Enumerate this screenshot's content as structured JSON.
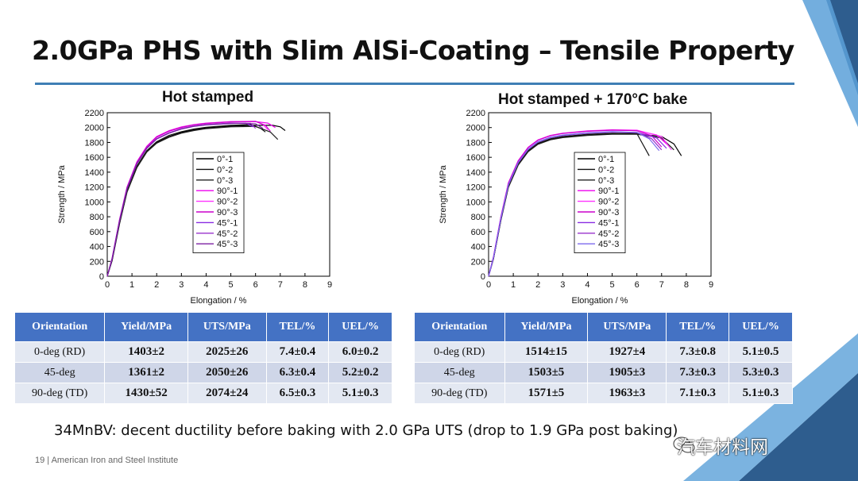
{
  "slide": {
    "title": "2.0GPa PHS with Slim AlSi-Coating – Tensile Property",
    "caption": "34MnBV: decent ductility before baking with 2.0 GPa UTS (drop to 1.9 GPa post baking)",
    "footer": "19  |  American Iron and Steel Institute",
    "watermark": "汽车材料网"
  },
  "colors": {
    "accent_rule": "#3f7fb5",
    "table_header": "#4472c4",
    "triangle_dark": "#2e5d8e",
    "triangle_light": "#5aa0d8"
  },
  "chart_data": [
    {
      "type": "line",
      "title": "Hot stamped",
      "xlabel": "Elongation / %",
      "ylabel": "Strength / MPa",
      "xlim": [
        0,
        9
      ],
      "ylim": [
        0,
        2200
      ],
      "xticks": [
        0,
        1,
        2,
        3,
        4,
        5,
        6,
        7,
        8,
        9
      ],
      "yticks": [
        0,
        200,
        400,
        600,
        800,
        1000,
        1200,
        1400,
        1600,
        1800,
        2000,
        2200
      ],
      "legend_position": "center",
      "series": [
        {
          "name": "0°-1",
          "color": "#000000",
          "x": [
            0,
            0.2,
            0.5,
            0.8,
            1.2,
            1.6,
            2,
            2.5,
            3,
            3.5,
            4,
            5,
            6,
            6.7,
            7.0,
            7.2
          ],
          "y": [
            0,
            220,
            720,
            1140,
            1470,
            1680,
            1800,
            1880,
            1935,
            1970,
            1995,
            2020,
            2030,
            2030,
            2010,
            1960
          ]
        },
        {
          "name": "0°-2",
          "color": "#111111",
          "x": [
            0,
            0.2,
            0.5,
            0.8,
            1.2,
            1.6,
            2,
            2.5,
            3,
            3.5,
            4,
            5,
            5.8,
            6.2,
            6.4
          ],
          "y": [
            0,
            230,
            730,
            1150,
            1480,
            1690,
            1810,
            1895,
            1945,
            1980,
            2005,
            2030,
            2040,
            1990,
            1940
          ]
        },
        {
          "name": "0°-3",
          "color": "#222222",
          "x": [
            0,
            0.2,
            0.5,
            0.8,
            1.2,
            1.6,
            2,
            2.5,
            3,
            3.5,
            4,
            5,
            6,
            6.6,
            6.9
          ],
          "y": [
            0,
            210,
            710,
            1130,
            1460,
            1670,
            1790,
            1870,
            1925,
            1960,
            1985,
            2010,
            2015,
            1940,
            1840
          ]
        },
        {
          "name": "90°-1",
          "color": "#ee00ee",
          "x": [
            0,
            0.2,
            0.5,
            0.8,
            1.2,
            1.6,
            2,
            2.5,
            3,
            3.5,
            4,
            5,
            6,
            6.5,
            6.8
          ],
          "y": [
            0,
            240,
            760,
            1190,
            1530,
            1740,
            1870,
            1950,
            2000,
            2035,
            2055,
            2075,
            2080,
            2060,
            2000
          ]
        },
        {
          "name": "90°-2",
          "color": "#ff33ff",
          "x": [
            0,
            0.2,
            0.5,
            0.8,
            1.2,
            1.6,
            2,
            2.5,
            3,
            3.5,
            4,
            5,
            6,
            6.3,
            6.5
          ],
          "y": [
            0,
            250,
            770,
            1200,
            1540,
            1750,
            1880,
            1960,
            2010,
            2040,
            2060,
            2080,
            2085,
            2040,
            1970
          ]
        },
        {
          "name": "90°-3",
          "color": "#cc00cc",
          "x": [
            0,
            0.2,
            0.5,
            0.8,
            1.2,
            1.6,
            2,
            2.5,
            3,
            3.5,
            4,
            5,
            6,
            6.4,
            6.6
          ],
          "y": [
            0,
            245,
            765,
            1195,
            1535,
            1745,
            1875,
            1955,
            2005,
            2038,
            2058,
            2078,
            2082,
            2030,
            1950
          ]
        },
        {
          "name": "45°-1",
          "color": "#8a2be2",
          "x": [
            0,
            0.2,
            0.5,
            0.8,
            1.2,
            1.6,
            2,
            2.5,
            3,
            3.5,
            4,
            5,
            5.6,
            5.9
          ],
          "y": [
            0,
            235,
            750,
            1175,
            1510,
            1720,
            1845,
            1925,
            1980,
            2015,
            2035,
            2055,
            2060,
            2010
          ]
        },
        {
          "name": "45°-2",
          "color": "#9932cc",
          "x": [
            0,
            0.2,
            0.5,
            0.8,
            1.2,
            1.6,
            2,
            2.5,
            3,
            3.5,
            4,
            5,
            5.8,
            6.0
          ],
          "y": [
            0,
            240,
            755,
            1180,
            1515,
            1725,
            1850,
            1930,
            1985,
            2020,
            2040,
            2060,
            2058,
            1990
          ]
        },
        {
          "name": "45°-3",
          "color": "#7b1fa2",
          "x": [
            0,
            0.2,
            0.5,
            0.8,
            1.2,
            1.6,
            2,
            2.5,
            3,
            3.5,
            4,
            5,
            6,
            6.3
          ],
          "y": [
            0,
            238,
            752,
            1178,
            1512,
            1722,
            1848,
            1928,
            1982,
            2018,
            2038,
            2058,
            2050,
            1990
          ]
        }
      ]
    },
    {
      "type": "line",
      "title": "Hot stamped + 170°C bake",
      "xlabel": "Elongation / %",
      "ylabel": "Strength / MPa",
      "xlim": [
        0,
        9
      ],
      "ylim": [
        0,
        2200
      ],
      "xticks": [
        0,
        1,
        2,
        3,
        4,
        5,
        6,
        7,
        8,
        9
      ],
      "yticks": [
        0,
        200,
        400,
        600,
        800,
        1000,
        1200,
        1400,
        1600,
        1800,
        2000,
        2200
      ],
      "legend_position": "center",
      "series": [
        {
          "name": "0°-1",
          "color": "#000000",
          "x": [
            0,
            0.2,
            0.5,
            0.8,
            1.2,
            1.6,
            2,
            2.5,
            3,
            4,
            5,
            6,
            7,
            7.5,
            7.8
          ],
          "y": [
            0,
            240,
            760,
            1200,
            1500,
            1680,
            1780,
            1840,
            1870,
            1900,
            1915,
            1915,
            1880,
            1780,
            1620
          ]
        },
        {
          "name": "0°-2",
          "color": "#111111",
          "x": [
            0,
            0.2,
            0.5,
            0.8,
            1.2,
            1.6,
            2,
            2.5,
            3,
            4,
            5,
            6,
            6.2,
            6.5
          ],
          "y": [
            0,
            245,
            770,
            1210,
            1510,
            1690,
            1790,
            1850,
            1880,
            1910,
            1925,
            1920,
            1800,
            1620
          ]
        },
        {
          "name": "0°-3",
          "color": "#222222",
          "x": [
            0,
            0.2,
            0.5,
            0.8,
            1.2,
            1.6,
            2,
            2.5,
            3,
            4,
            5,
            6,
            7,
            7.5
          ],
          "y": [
            0,
            235,
            755,
            1195,
            1495,
            1675,
            1775,
            1835,
            1865,
            1895,
            1910,
            1910,
            1860,
            1700
          ]
        },
        {
          "name": "90°-1",
          "color": "#ee00ee",
          "x": [
            0,
            0.2,
            0.5,
            0.8,
            1.2,
            1.6,
            2,
            2.5,
            3,
            4,
            5,
            6,
            6.8,
            7.3
          ],
          "y": [
            0,
            260,
            800,
            1250,
            1550,
            1730,
            1830,
            1890,
            1920,
            1950,
            1965,
            1960,
            1900,
            1750
          ]
        },
        {
          "name": "90°-2",
          "color": "#ff33ff",
          "x": [
            0,
            0.2,
            0.5,
            0.8,
            1.2,
            1.6,
            2,
            2.5,
            3,
            4,
            5,
            6,
            7,
            7.4
          ],
          "y": [
            0,
            265,
            805,
            1255,
            1555,
            1735,
            1835,
            1895,
            1925,
            1955,
            1970,
            1965,
            1880,
            1700
          ]
        },
        {
          "name": "90°-3",
          "color": "#cc00cc",
          "x": [
            0,
            0.2,
            0.5,
            0.8,
            1.2,
            1.6,
            2,
            2.5,
            3,
            4,
            5,
            6,
            6.6,
            7.0
          ],
          "y": [
            0,
            262,
            802,
            1252,
            1552,
            1732,
            1832,
            1892,
            1922,
            1952,
            1966,
            1958,
            1890,
            1740
          ]
        },
        {
          "name": "45°-1",
          "color": "#8a2be2",
          "x": [
            0,
            0.2,
            0.5,
            0.8,
            1.2,
            1.6,
            2,
            2.5,
            3,
            4,
            5,
            6,
            6.8,
            7.2
          ],
          "y": [
            0,
            250,
            780,
            1225,
            1525,
            1705,
            1805,
            1865,
            1895,
            1925,
            1940,
            1935,
            1860,
            1720
          ]
        },
        {
          "name": "45°-2",
          "color": "#9932cc",
          "x": [
            0,
            0.2,
            0.5,
            0.8,
            1.2,
            1.6,
            2,
            2.5,
            3,
            4,
            5,
            6,
            6.6,
            7.0
          ],
          "y": [
            0,
            252,
            782,
            1228,
            1528,
            1708,
            1808,
            1868,
            1898,
            1928,
            1942,
            1932,
            1850,
            1700
          ]
        },
        {
          "name": "45°-3",
          "color": "#7b68ee",
          "x": [
            0,
            0.2,
            0.5,
            0.8,
            1.2,
            1.6,
            2,
            2.5,
            3,
            4,
            5,
            6,
            6.5,
            6.9
          ],
          "y": [
            0,
            255,
            785,
            1230,
            1530,
            1710,
            1810,
            1870,
            1900,
            1930,
            1945,
            1935,
            1850,
            1690
          ]
        }
      ]
    }
  ],
  "tables": [
    {
      "headers": [
        "Orientation",
        "Yield/MPa",
        "UTS/MPa",
        "TEL/%",
        "UEL/%"
      ],
      "rows": [
        [
          "0-deg (RD)",
          "1403±2",
          "2025±26",
          "7.4±0.4",
          "6.0±0.2"
        ],
        [
          "45-deg",
          "1361±2",
          "2050±26",
          "6.3±0.4",
          "5.2±0.2"
        ],
        [
          "90-deg (TD)",
          "1430±52",
          "2074±24",
          "6.5±0.3",
          "5.1±0.3"
        ]
      ]
    },
    {
      "headers": [
        "Orientation",
        "Yield/MPa",
        "UTS/MPa",
        "TEL/%",
        "UEL/%"
      ],
      "rows": [
        [
          "0-deg (RD)",
          "1514±15",
          "1927±4",
          "7.3±0.8",
          "5.1±0.5"
        ],
        [
          "45-deg",
          "1503±5",
          "1905±3",
          "7.3±0.3",
          "5.3±0.3"
        ],
        [
          "90-deg (TD)",
          "1571±5",
          "1963±3",
          "7.1±0.3",
          "5.1±0.3"
        ]
      ]
    }
  ]
}
